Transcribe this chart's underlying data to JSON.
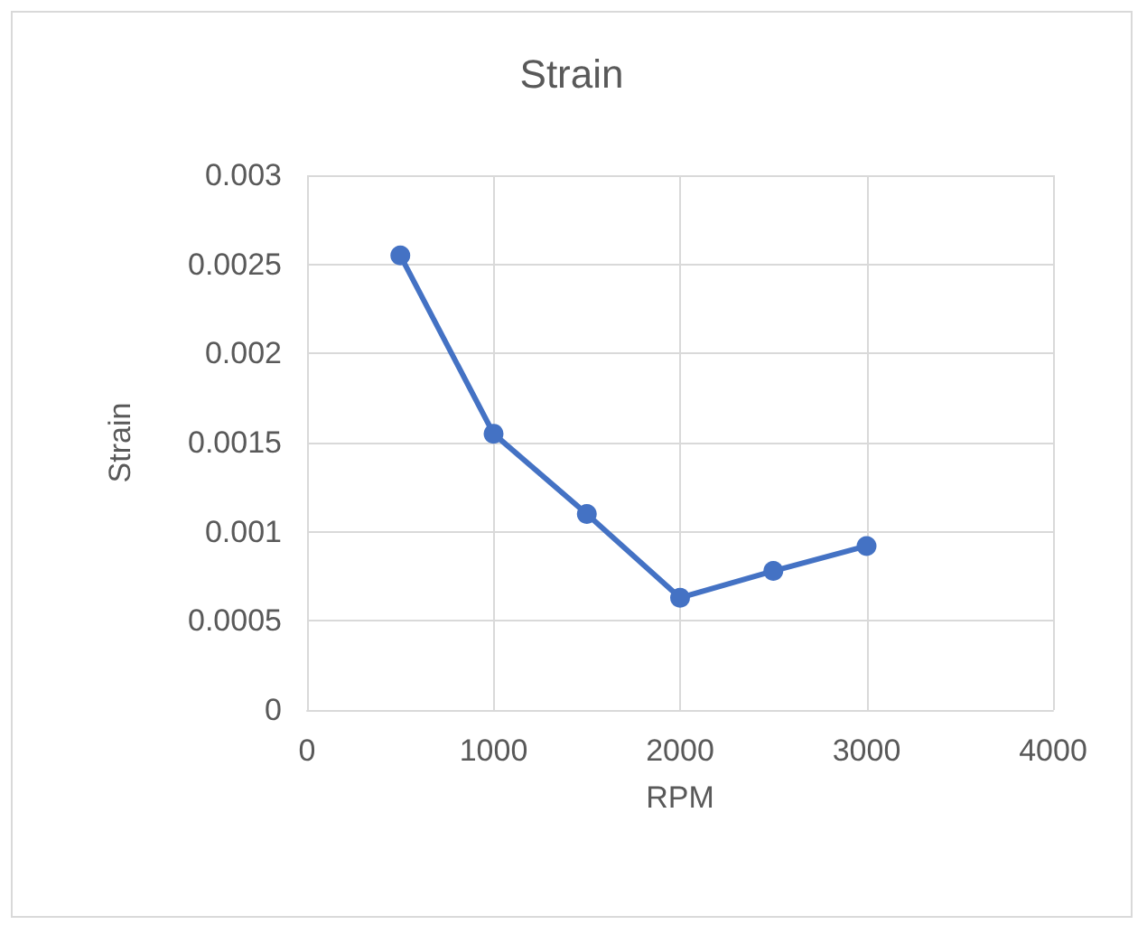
{
  "chart_data": {
    "type": "line",
    "title": "Strain",
    "xlabel": "RPM",
    "ylabel": "Strain",
    "x": [
      500,
      1000,
      1500,
      2000,
      2500,
      3000
    ],
    "series": [
      {
        "color": "#4472c4",
        "values": [
          0.00255,
          0.00155,
          0.0011,
          0.00063,
          0.00078,
          0.00092
        ]
      }
    ],
    "xlim": [
      0,
      4000
    ],
    "xticks": [
      0,
      1000,
      2000,
      3000,
      4000
    ],
    "ylim": [
      0,
      0.003
    ],
    "yticks": [
      0,
      0.0005,
      0.001,
      0.0015,
      0.002,
      0.0025,
      0.003
    ],
    "grid": true,
    "marker": "circle",
    "line_style": "solid"
  }
}
